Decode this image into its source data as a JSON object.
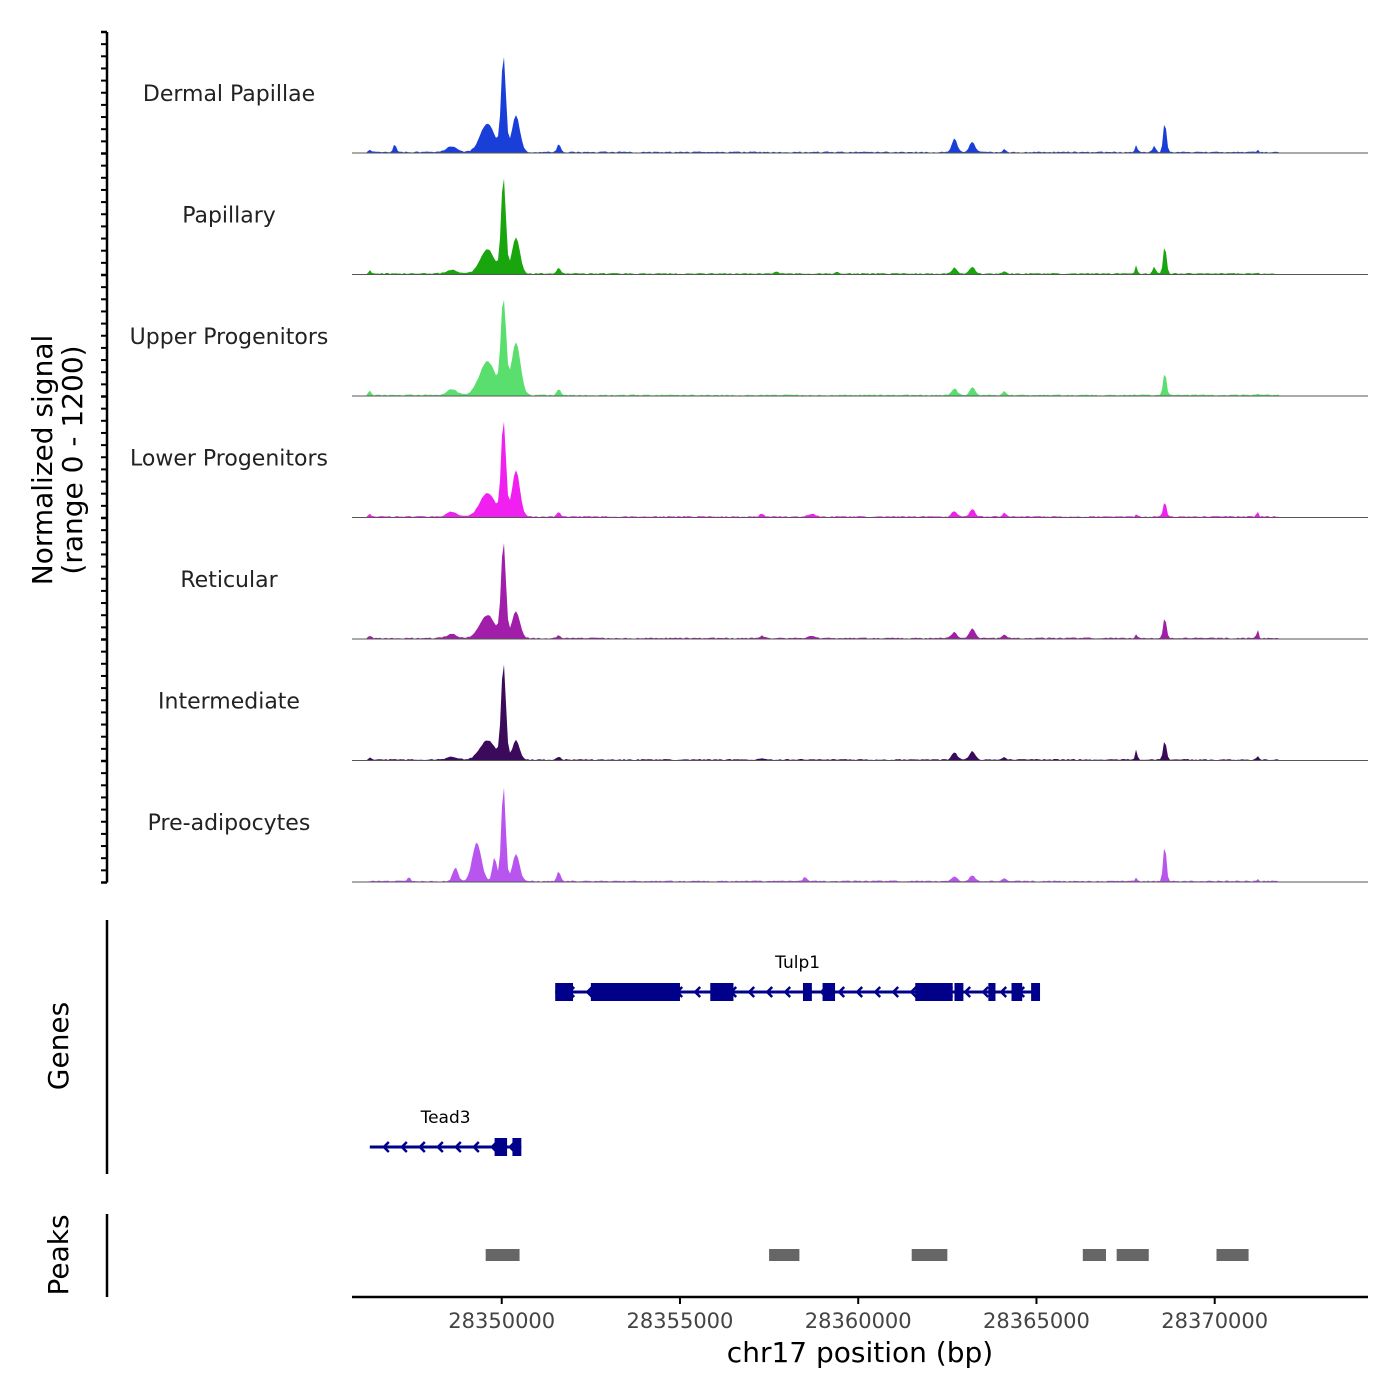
{
  "chart_data": {
    "type": "area",
    "title": "",
    "chromosome": "chr17",
    "xlabel": "chr17 position (bp)",
    "xlim": [
      28345800,
      28374300
    ],
    "xticks": [
      28350000,
      28355000,
      28360000,
      28365000,
      28370000
    ],
    "xtick_labels": [
      "28350000",
      "28355000",
      "28360000",
      "28365000",
      "28370000"
    ],
    "coverage": {
      "ylabel_line1": "Normalized signal",
      "ylabel_line2": "(range 0 - 1200)",
      "ylim": [
        0,
        1200
      ],
      "tracks": [
        {
          "name": "Dermal Papillae",
          "color": "#1a3fd8",
          "scale": 1.0,
          "peaks": [
            [
              28350050,
              1000,
              130
            ],
            [
              28350400,
              380,
              220
            ],
            [
              28349600,
              300,
              400
            ],
            [
              28348600,
              60,
              300
            ],
            [
              28347000,
              80,
              80
            ],
            [
              28346300,
              20,
              80
            ],
            [
              28351600,
              80,
              100
            ],
            [
              28362700,
              140,
              150
            ],
            [
              28363200,
              110,
              150
            ],
            [
              28364100,
              30,
              90
            ],
            [
              28367800,
              80,
              60
            ],
            [
              28368600,
              320,
              90
            ],
            [
              28368300,
              60,
              90
            ],
            [
              28371200,
              30,
              50
            ]
          ]
        },
        {
          "name": "Papillary",
          "color": "#19a50d",
          "scale": 1.0,
          "peaks": [
            [
              28350050,
              1000,
              130
            ],
            [
              28350400,
              380,
              220
            ],
            [
              28349600,
              250,
              400
            ],
            [
              28348600,
              40,
              300
            ],
            [
              28346300,
              30,
              80
            ],
            [
              28351600,
              60,
              100
            ],
            [
              28357700,
              25,
              80
            ],
            [
              28359400,
              20,
              80
            ],
            [
              28362700,
              60,
              150
            ],
            [
              28363200,
              70,
              150
            ],
            [
              28364100,
              30,
              90
            ],
            [
              28367800,
              90,
              60
            ],
            [
              28368600,
              300,
              90
            ],
            [
              28368300,
              70,
              90
            ],
            [
              28371200,
              15,
              50
            ]
          ]
        },
        {
          "name": "Upper Progenitors",
          "color": "#5ade6d",
          "scale": 1.0,
          "peaks": [
            [
              28350050,
              1000,
              140
            ],
            [
              28350400,
              550,
              250
            ],
            [
              28349600,
              350,
              450
            ],
            [
              28348600,
              60,
              300
            ],
            [
              28346300,
              50,
              80
            ],
            [
              28351600,
              60,
              100
            ],
            [
              28362700,
              70,
              150
            ],
            [
              28363200,
              80,
              150
            ],
            [
              28364100,
              40,
              90
            ],
            [
              28368600,
              240,
              90
            ],
            [
              28371200,
              20,
              50
            ]
          ]
        },
        {
          "name": "Lower Progenitors",
          "color": "#f020f0",
          "scale": 1.0,
          "peaks": [
            [
              28350050,
              1000,
              130
            ],
            [
              28350400,
              480,
              220
            ],
            [
              28349600,
              250,
              420
            ],
            [
              28348600,
              50,
              300
            ],
            [
              28346300,
              25,
              80
            ],
            [
              28351600,
              50,
              100
            ],
            [
              28357300,
              30,
              120
            ],
            [
              28358700,
              30,
              200
            ],
            [
              28362700,
              60,
              150
            ],
            [
              28363200,
              80,
              150
            ],
            [
              28364100,
              40,
              90
            ],
            [
              28368600,
              160,
              90
            ],
            [
              28367800,
              20,
              60
            ],
            [
              28371200,
              50,
              60
            ]
          ]
        },
        {
          "name": "Reticular",
          "color": "#a01ea8",
          "scale": 1.0,
          "peaks": [
            [
              28350050,
              1000,
              130
            ],
            [
              28350400,
              280,
              220
            ],
            [
              28349600,
              240,
              420
            ],
            [
              28348600,
              40,
              300
            ],
            [
              28346300,
              25,
              80
            ],
            [
              28351600,
              30,
              100
            ],
            [
              28357300,
              25,
              120
            ],
            [
              28358700,
              20,
              200
            ],
            [
              28362700,
              60,
              150
            ],
            [
              28363200,
              100,
              150
            ],
            [
              28364100,
              40,
              90
            ],
            [
              28367800,
              40,
              60
            ],
            [
              28368600,
              220,
              90
            ],
            [
              28371200,
              90,
              60
            ]
          ]
        },
        {
          "name": "Intermediate",
          "color": "#3b0a5a",
          "scale": 1.0,
          "peaks": [
            [
              28350050,
              1000,
              130
            ],
            [
              28350400,
              200,
              200
            ],
            [
              28349600,
              200,
              420
            ],
            [
              28348600,
              30,
              300
            ],
            [
              28346300,
              20,
              80
            ],
            [
              28351600,
              30,
              100
            ],
            [
              28357300,
              20,
              120
            ],
            [
              28362700,
              80,
              150
            ],
            [
              28363200,
              90,
              150
            ],
            [
              28364100,
              30,
              90
            ],
            [
              28367800,
              110,
              60
            ],
            [
              28368600,
              200,
              90
            ],
            [
              28371200,
              40,
              60
            ]
          ]
        },
        {
          "name": "Pre-adipocytes",
          "color": "#b855ee",
          "scale": 1.0,
          "peaks": [
            [
              28350050,
              1000,
              120
            ],
            [
              28350400,
              280,
              200
            ],
            [
              28349300,
              400,
              250
            ],
            [
              28349800,
              250,
              120
            ],
            [
              28348700,
              140,
              150
            ],
            [
              28347400,
              40,
              80
            ],
            [
              28351600,
              100,
              100
            ],
            [
              28358500,
              40,
              100
            ],
            [
              28362700,
              50,
              150
            ],
            [
              28363200,
              60,
              150
            ],
            [
              28364100,
              30,
              90
            ],
            [
              28367800,
              40,
              60
            ],
            [
              28368600,
              380,
              90
            ],
            [
              28371200,
              20,
              60
            ]
          ]
        }
      ]
    },
    "genes": {
      "ylabel": "Genes",
      "color": "#00008b",
      "items": [
        {
          "name": "Tulp1",
          "start": 28351500,
          "end": 28365100,
          "strand": "-",
          "row": 0,
          "exons": [
            [
              28351500,
              28352000
            ],
            [
              28352500,
              28355000
            ],
            [
              28355850,
              28356500
            ],
            [
              28358450,
              28358700
            ],
            [
              28359000,
              28359350
            ],
            [
              28361600,
              28362650
            ],
            [
              28362700,
              28362950
            ],
            [
              28363650,
              28363850
            ],
            [
              28364300,
              28364600
            ],
            [
              28364850,
              28365100
            ]
          ]
        },
        {
          "name": "Tead3",
          "start": 28346300,
          "end": 28350550,
          "strand": "-",
          "row": 1,
          "exons": [
            [
              28349800,
              28350150
            ],
            [
              28350300,
              28350550
            ]
          ]
        }
      ]
    },
    "peaks": {
      "ylabel": "Peaks",
      "color": "#666666",
      "regions": [
        [
          28349550,
          28350500
        ],
        [
          28357500,
          28358350
        ],
        [
          28361500,
          28362500
        ],
        [
          28366300,
          28366950
        ],
        [
          28367250,
          28368150
        ],
        [
          28370050,
          28370950
        ]
      ]
    }
  }
}
